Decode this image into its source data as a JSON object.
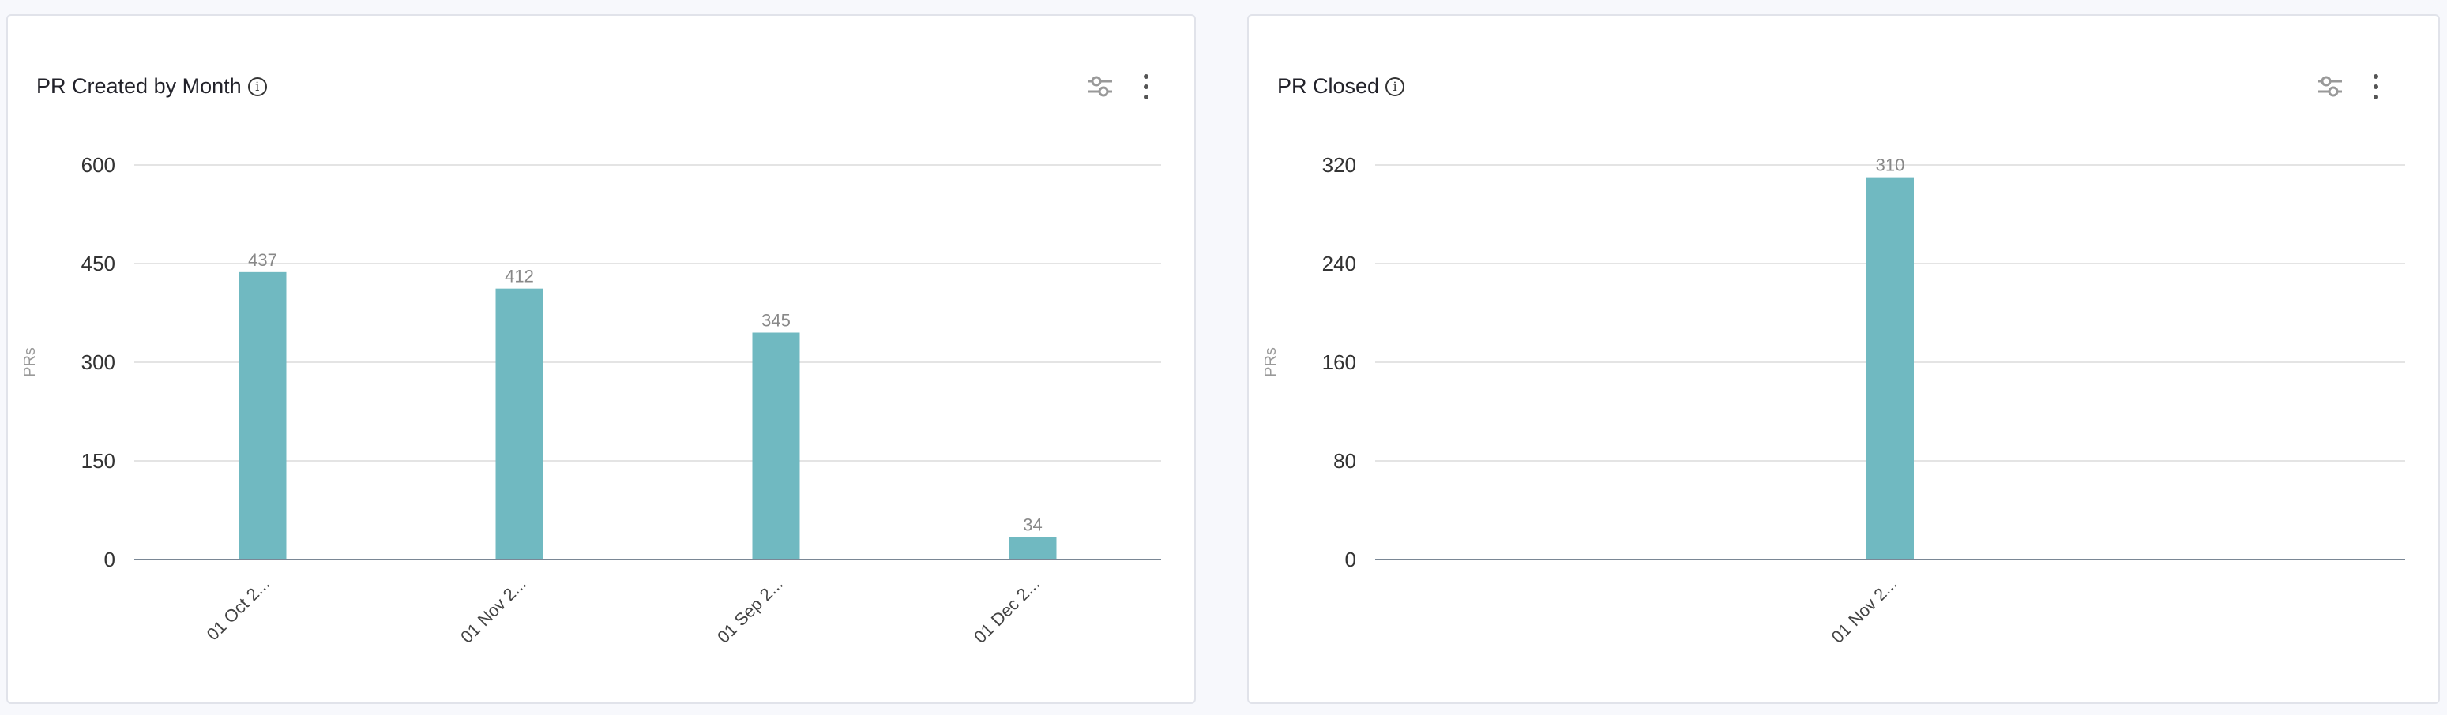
{
  "cards": [
    {
      "title": "PR Created by Month"
    },
    {
      "title": "PR Closed"
    }
  ],
  "chart_data": [
    {
      "type": "bar",
      "title": "PR Created by Month",
      "xlabel": "",
      "ylabel": "PRs",
      "categories": [
        "01 Oct 2...",
        "01 Nov 2...",
        "01 Sep 2...",
        "01 Dec 2..."
      ],
      "values": [
        437,
        412,
        345,
        34
      ],
      "ylim": [
        0,
        600
      ],
      "yticks": [
        0,
        150,
        300,
        450,
        600
      ],
      "grid": true,
      "bar_color": "#70b9c1"
    },
    {
      "type": "bar",
      "title": "PR Closed",
      "xlabel": "",
      "ylabel": "PRs",
      "categories": [
        "01 Nov 2..."
      ],
      "values": [
        310
      ],
      "ylim": [
        0,
        320
      ],
      "yticks": [
        0,
        80,
        160,
        240,
        320
      ],
      "grid": true,
      "bar_color": "#70b9c1"
    }
  ]
}
